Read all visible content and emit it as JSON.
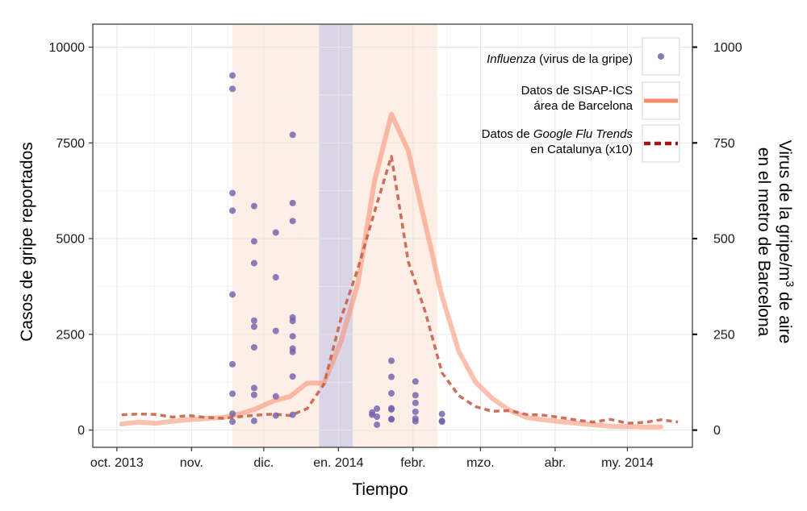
{
  "chart_data": {
    "type": "line",
    "xlabel": "Tiempo",
    "ylabel_left": "Casos de gripe reportados",
    "ylabel_right_line1": "Virus de la gripe/m",
    "ylabel_right_sup": "3",
    "ylabel_right_line1_end": " de aire",
    "ylabel_right_line2": "en el metro de Barcelona",
    "xlim": [
      "2013-09-21",
      "2014-05-28"
    ],
    "ylim_left": [
      -450,
      10600
    ],
    "ylim_right": [
      -45,
      1060
    ],
    "x_ticks": [
      {
        "date": "2013-10-01",
        "label": "oct. 2013"
      },
      {
        "date": "2013-11-01",
        "label": "nov."
      },
      {
        "date": "2013-12-01",
        "label": "dic."
      },
      {
        "date": "2014-01-01",
        "label": "en. 2014"
      },
      {
        "date": "2014-02-01",
        "label": "febr."
      },
      {
        "date": "2014-03-01",
        "label": "mzo."
      },
      {
        "date": "2014-04-01",
        "label": "abr."
      },
      {
        "date": "2014-05-01",
        "label": "my. 2014"
      }
    ],
    "y_ticks_left": [
      {
        "value": 0,
        "label": "0"
      },
      {
        "value": 2500,
        "label": "2500"
      },
      {
        "value": 5000,
        "label": "5000"
      },
      {
        "value": 7500,
        "label": "7500"
      },
      {
        "value": 10000,
        "label": "10000"
      }
    ],
    "y_ticks_right": [
      {
        "value": 0,
        "label": "0"
      },
      {
        "value": 250,
        "label": "250"
      },
      {
        "value": 500,
        "label": "500"
      },
      {
        "value": 750,
        "label": "750"
      },
      {
        "value": 1000,
        "label": "1000"
      }
    ],
    "shaded_periods": [
      {
        "start": "2013-11-18",
        "end": "2013-12-24",
        "color": "#fdeee6"
      },
      {
        "start": "2013-12-24",
        "end": "2014-01-07",
        "color": "#d9d4e6"
      },
      {
        "start": "2014-01-07",
        "end": "2014-02-11",
        "color": "#fdeee6"
      }
    ],
    "series": [
      {
        "name": "Datos de SISAP-ICS área de Barcelona",
        "style": "solid",
        "color": "#f78c6b",
        "points": [
          [
            "2013-10-03",
            160
          ],
          [
            "2013-10-10",
            210
          ],
          [
            "2013-10-17",
            180
          ],
          [
            "2013-10-24",
            230
          ],
          [
            "2013-10-31",
            270
          ],
          [
            "2013-11-07",
            300
          ],
          [
            "2013-11-14",
            330
          ],
          [
            "2013-11-21",
            420
          ],
          [
            "2013-11-28",
            560
          ],
          [
            "2013-12-05",
            760
          ],
          [
            "2013-12-12",
            880
          ],
          [
            "2013-12-19",
            1230
          ],
          [
            "2013-12-26",
            1230
          ],
          [
            "2014-01-02",
            2300
          ],
          [
            "2014-01-09",
            3800
          ],
          [
            "2014-01-16",
            6500
          ],
          [
            "2014-01-23",
            8250
          ],
          [
            "2014-01-30",
            7300
          ],
          [
            "2014-02-06",
            5400
          ],
          [
            "2014-02-13",
            3500
          ],
          [
            "2014-02-20",
            2050
          ],
          [
            "2014-02-27",
            1250
          ],
          [
            "2014-03-06",
            820
          ],
          [
            "2014-03-13",
            520
          ],
          [
            "2014-03-20",
            330
          ],
          [
            "2014-03-27",
            270
          ],
          [
            "2014-04-03",
            220
          ],
          [
            "2014-04-10",
            180
          ],
          [
            "2014-04-17",
            140
          ],
          [
            "2014-04-24",
            100
          ],
          [
            "2014-05-01",
            90
          ],
          [
            "2014-05-08",
            80
          ],
          [
            "2014-05-15",
            80
          ]
        ]
      },
      {
        "name": "Datos de Google Flu Trends en Catalunya (x10)",
        "style": "dashed",
        "color": "#c8604a",
        "points": [
          [
            "2013-10-03",
            400
          ],
          [
            "2013-10-10",
            420
          ],
          [
            "2013-10-17",
            410
          ],
          [
            "2013-10-24",
            340
          ],
          [
            "2013-10-31",
            380
          ],
          [
            "2013-11-07",
            330
          ],
          [
            "2013-11-14",
            310
          ],
          [
            "2013-11-21",
            350
          ],
          [
            "2013-11-28",
            390
          ],
          [
            "2013-12-05",
            420
          ],
          [
            "2013-12-12",
            380
          ],
          [
            "2013-12-19",
            560
          ],
          [
            "2013-12-26",
            1200
          ],
          [
            "2014-01-02",
            2900
          ],
          [
            "2014-01-09",
            4200
          ],
          [
            "2014-01-16",
            5700
          ],
          [
            "2014-01-23",
            7150
          ],
          [
            "2014-01-30",
            4400
          ],
          [
            "2014-02-06",
            3100
          ],
          [
            "2014-02-13",
            1500
          ],
          [
            "2014-02-20",
            900
          ],
          [
            "2014-02-27",
            610
          ],
          [
            "2014-03-06",
            490
          ],
          [
            "2014-03-13",
            510
          ],
          [
            "2014-03-20",
            410
          ],
          [
            "2014-03-27",
            390
          ],
          [
            "2014-04-03",
            330
          ],
          [
            "2014-04-10",
            260
          ],
          [
            "2014-04-17",
            210
          ],
          [
            "2014-04-24",
            280
          ],
          [
            "2014-05-01",
            180
          ],
          [
            "2014-05-08",
            200
          ],
          [
            "2014-05-15",
            270
          ],
          [
            "2014-05-22",
            210
          ]
        ]
      },
      {
        "name": "Influenza (virus de la gripe)",
        "style": "points",
        "axis": "right",
        "color": "#7262ac",
        "points": [
          [
            "2013-11-18",
            926
          ],
          [
            "2013-11-18",
            891
          ],
          [
            "2013-11-18",
            619
          ],
          [
            "2013-11-18",
            573
          ],
          [
            "2013-11-18",
            354
          ],
          [
            "2013-11-18",
            172
          ],
          [
            "2013-11-18",
            95
          ],
          [
            "2013-11-18",
            43
          ],
          [
            "2013-11-18",
            22
          ],
          [
            "2013-11-27",
            585
          ],
          [
            "2013-11-27",
            493
          ],
          [
            "2013-11-27",
            436
          ],
          [
            "2013-11-27",
            286
          ],
          [
            "2013-11-27",
            270
          ],
          [
            "2013-11-27",
            216
          ],
          [
            "2013-11-27",
            110
          ],
          [
            "2013-11-27",
            92
          ],
          [
            "2013-11-27",
            24
          ],
          [
            "2013-12-06",
            516
          ],
          [
            "2013-12-06",
            399
          ],
          [
            "2013-12-06",
            259
          ],
          [
            "2013-12-06",
            88
          ],
          [
            "2013-12-06",
            38
          ],
          [
            "2013-12-13",
            771
          ],
          [
            "2013-12-13",
            593
          ],
          [
            "2013-12-13",
            546
          ],
          [
            "2013-12-13",
            294
          ],
          [
            "2013-12-13",
            285
          ],
          [
            "2013-12-13",
            245
          ],
          [
            "2013-12-13",
            213
          ],
          [
            "2013-12-13",
            204
          ],
          [
            "2013-12-13",
            140
          ],
          [
            "2013-12-13",
            40
          ],
          [
            "2014-01-15",
            46
          ],
          [
            "2014-01-15",
            40
          ],
          [
            "2014-01-17",
            56
          ],
          [
            "2014-01-17",
            35
          ],
          [
            "2014-01-17",
            14
          ],
          [
            "2014-01-23",
            181
          ],
          [
            "2014-01-23",
            139
          ],
          [
            "2014-01-23",
            96
          ],
          [
            "2014-01-23",
            57
          ],
          [
            "2014-01-23",
            54
          ],
          [
            "2014-01-23",
            29
          ],
          [
            "2014-01-23",
            28
          ],
          [
            "2014-02-02",
            127
          ],
          [
            "2014-02-02",
            91
          ],
          [
            "2014-02-02",
            71
          ],
          [
            "2014-02-02",
            48
          ],
          [
            "2014-02-02",
            30
          ],
          [
            "2014-02-02",
            23
          ],
          [
            "2014-02-13",
            42
          ],
          [
            "2014-02-13",
            24
          ],
          [
            "2014-02-13",
            22
          ]
        ]
      }
    ],
    "legend": {
      "position": "top-right",
      "items": [
        {
          "label_italic": "Influenza",
          "label_rest": " (virus de la gripe)",
          "key": "point"
        },
        {
          "line1": "Datos de SISAP-ICS",
          "line2": "área de Barcelona",
          "key": "solid"
        },
        {
          "line1_prefix": "Datos de ",
          "line1_italic": "Google Flu Trends",
          "line2": "en Catalunya (x10)",
          "key": "dashed"
        }
      ]
    },
    "grid": true
  }
}
